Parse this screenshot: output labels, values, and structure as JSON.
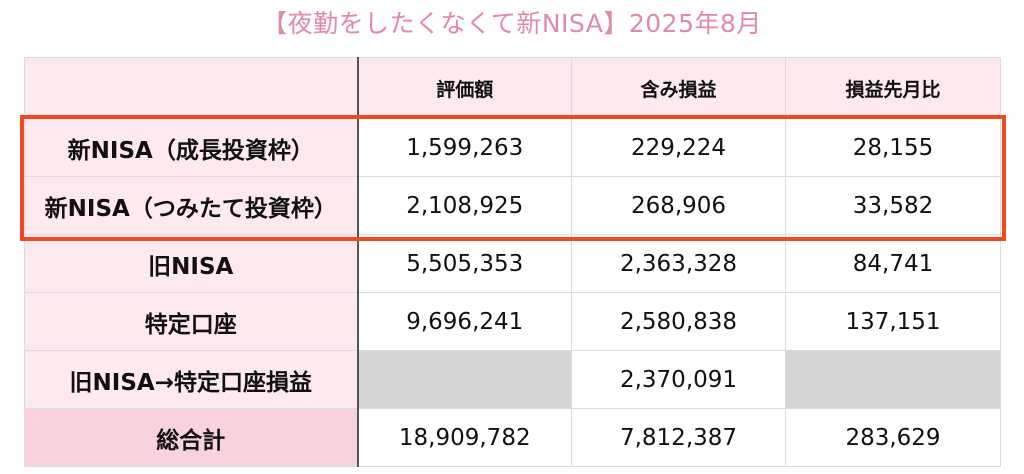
{
  "title": "【夜勤をしたくなくて新NISA】2025年8月",
  "table": {
    "headers": [
      "",
      "評価額",
      "含み損益",
      "損益先月比"
    ],
    "rows": [
      {
        "label": "新NISA（成長投資枠）",
        "valuation": "1,599,263",
        "unrealized": "229,224",
        "mom": "28,155"
      },
      {
        "label": "新NISA（つみたて投資枠）",
        "valuation": "2,108,925",
        "unrealized": "268,906",
        "mom": "33,582"
      },
      {
        "label": "旧NISA",
        "valuation": "5,505,353",
        "unrealized": "2,363,328",
        "mom": "84,741"
      },
      {
        "label": "特定口座",
        "valuation": "9,696,241",
        "unrealized": "2,580,838",
        "mom": "137,151"
      },
      {
        "label": "旧NISA→特定口座損益",
        "valuation": "",
        "unrealized": "2,370,091",
        "mom": ""
      },
      {
        "label": "総合計",
        "valuation": "18,909,782",
        "unrealized": "7,812,387",
        "mom": "283,629"
      }
    ]
  },
  "colors": {
    "title": "#e08aa8",
    "header_bg": "#fde9ee",
    "total_label_bg": "#f8d3de",
    "highlight_border": "#f04a22",
    "empty_cell": "#d6d6d6"
  }
}
